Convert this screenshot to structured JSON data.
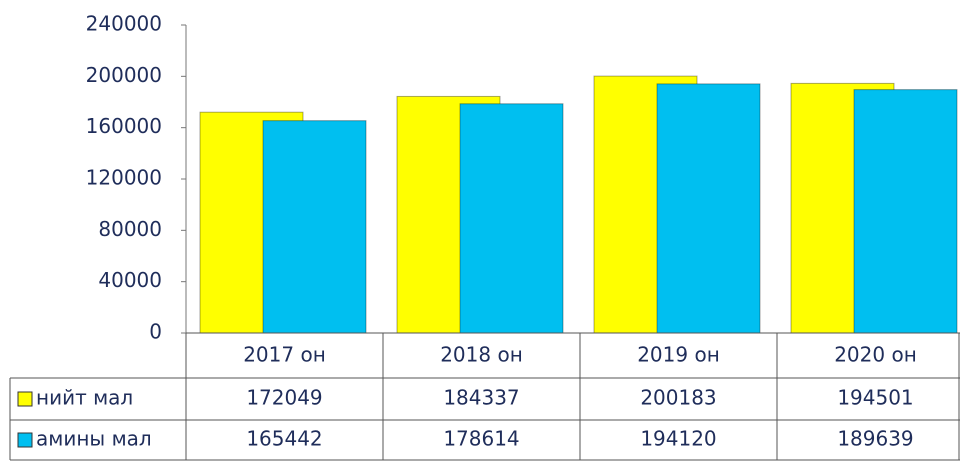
{
  "chart_data": {
    "type": "bar",
    "categories": [
      "2017 он",
      "2018 он",
      "2019 он",
      "2020 он"
    ],
    "series": [
      {
        "name": "нийт мал",
        "color": "#ffff00",
        "values": [
          172049,
          184337,
          200183,
          194501
        ]
      },
      {
        "name": "амины мал",
        "color": "#00bff0",
        "values": [
          165442,
          178614,
          194120,
          189639
        ]
      }
    ],
    "ylim": [
      0,
      240000
    ],
    "yticks": [
      0,
      40000,
      80000,
      120000,
      160000,
      200000,
      240000
    ],
    "grid": false,
    "legend": "table"
  }
}
